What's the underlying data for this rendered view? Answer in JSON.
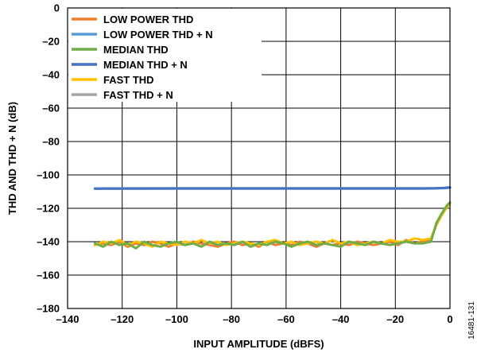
{
  "chart_data": {
    "type": "line",
    "xlabel": "INPUT AMPLITUDE (dBFS)",
    "ylabel": "THD AND THD + N (dB)",
    "xlim": [
      -140,
      0
    ],
    "ylim": [
      -180,
      0
    ],
    "xticks": [
      -140,
      -120,
      -100,
      -80,
      -60,
      -40,
      -20,
      0
    ],
    "yticks": [
      0,
      -20,
      -40,
      -60,
      -80,
      -100,
      -120,
      -140,
      -160,
      -180
    ],
    "xtick_labels": [
      "–140",
      "–120",
      "–100",
      "–80",
      "–60",
      "–40",
      "–20",
      "0"
    ],
    "ytick_labels": [
      "0",
      "–20",
      "–40",
      "–60",
      "–80",
      "–100",
      "–120",
      "–140",
      "–160",
      "–180"
    ],
    "grid": true,
    "legend_position": "top-left",
    "figure_id": "16481-131",
    "series": [
      {
        "name": "LOW POWER THD",
        "color": "#ED7D31",
        "x": [
          -130,
          -127,
          -124,
          -121,
          -118,
          -115,
          -112,
          -109,
          -106,
          -103,
          -100,
          -97,
          -94,
          -91,
          -88,
          -85,
          -82,
          -79,
          -76,
          -73,
          -70,
          -67,
          -64,
          -61,
          -58,
          -55,
          -52,
          -49,
          -46,
          -43,
          -40,
          -37,
          -34,
          -31,
          -28,
          -25,
          -22,
          -19,
          -16,
          -13,
          -10,
          -7,
          -5,
          -3,
          -1,
          0
        ],
        "y": [
          -142,
          -141,
          -142,
          -140,
          -143,
          -141,
          -142,
          -140,
          -141,
          -143,
          -141,
          -142,
          -140,
          -141,
          -142,
          -143,
          -141,
          -140,
          -142,
          -141,
          -143,
          -140,
          -142,
          -141,
          -142,
          -140,
          -141,
          -143,
          -141,
          -142,
          -141,
          -142,
          -140,
          -141,
          -142,
          -141,
          -140,
          -142,
          -139,
          -141,
          -140,
          -139,
          -130,
          -124,
          -119,
          -117
        ]
      },
      {
        "name": "LOW POWER THD + N",
        "color": "#5B9BD5",
        "x": [
          -130,
          -100,
          -70,
          -40,
          -10,
          -5,
          -2,
          0
        ],
        "y": [
          -108.3,
          -108.2,
          -108.2,
          -108.2,
          -108.2,
          -108.1,
          -107.9,
          -107.6
        ]
      },
      {
        "name": "MEDIAN THD",
        "color": "#70AD47",
        "x": [
          -130,
          -127,
          -124,
          -121,
          -118,
          -115,
          -112,
          -109,
          -106,
          -103,
          -100,
          -97,
          -94,
          -91,
          -88,
          -85,
          -82,
          -79,
          -76,
          -73,
          -70,
          -67,
          -64,
          -61,
          -58,
          -55,
          -52,
          -49,
          -46,
          -43,
          -40,
          -37,
          -34,
          -31,
          -28,
          -25,
          -22,
          -19,
          -16,
          -13,
          -10,
          -7,
          -5,
          -3,
          -1,
          0
        ],
        "y": [
          -141,
          -143,
          -140,
          -142,
          -141,
          -144,
          -140,
          -142,
          -143,
          -141,
          -140,
          -142,
          -141,
          -143,
          -140,
          -142,
          -141,
          -142,
          -140,
          -143,
          -141,
          -142,
          -140,
          -141,
          -143,
          -141,
          -140,
          -142,
          -141,
          -142,
          -143,
          -140,
          -141,
          -142,
          -140,
          -141,
          -142,
          -141,
          -140,
          -141,
          -141,
          -140,
          -129,
          -123,
          -118,
          -116.5
        ]
      },
      {
        "name": "MEDIAN THD + N",
        "color": "#4472C4",
        "x": [
          -130,
          -100,
          -70,
          -40,
          -10,
          -5,
          -2,
          0
        ],
        "y": [
          -108.2,
          -108.1,
          -108.1,
          -108.1,
          -108.1,
          -108.0,
          -107.8,
          -107.5
        ]
      },
      {
        "name": "FAST THD",
        "color": "#FFC000",
        "x": [
          -130,
          -127,
          -124,
          -121,
          -118,
          -115,
          -112,
          -109,
          -106,
          -103,
          -100,
          -97,
          -94,
          -91,
          -88,
          -85,
          -82,
          -79,
          -76,
          -73,
          -70,
          -67,
          -64,
          -61,
          -58,
          -55,
          -52,
          -49,
          -46,
          -43,
          -40,
          -37,
          -34,
          -31,
          -28,
          -25,
          -22,
          -19,
          -16,
          -13,
          -10,
          -7,
          -5,
          -3,
          -1,
          0
        ],
        "y": [
          -142,
          -140,
          -141,
          -139,
          -142,
          -140,
          -141,
          -143,
          -140,
          -141,
          -142,
          -140,
          -141,
          -139,
          -141,
          -140,
          -142,
          -141,
          -140,
          -141,
          -142,
          -140,
          -139,
          -141,
          -140,
          -142,
          -141,
          -140,
          -141,
          -139,
          -141,
          -140,
          -142,
          -141,
          -140,
          -141,
          -139,
          -140,
          -140,
          -138,
          -139,
          -138,
          -130,
          -124,
          -119,
          -117
        ]
      },
      {
        "name": "FAST THD + N",
        "color": "#A5A5A5",
        "x": [
          -130,
          -100,
          -70,
          -40,
          -10,
          -5,
          -2,
          0
        ],
        "y": [
          -108.1,
          -108.0,
          -108.0,
          -108.0,
          -108.0,
          -107.9,
          -107.7,
          -107.4
        ]
      }
    ]
  }
}
